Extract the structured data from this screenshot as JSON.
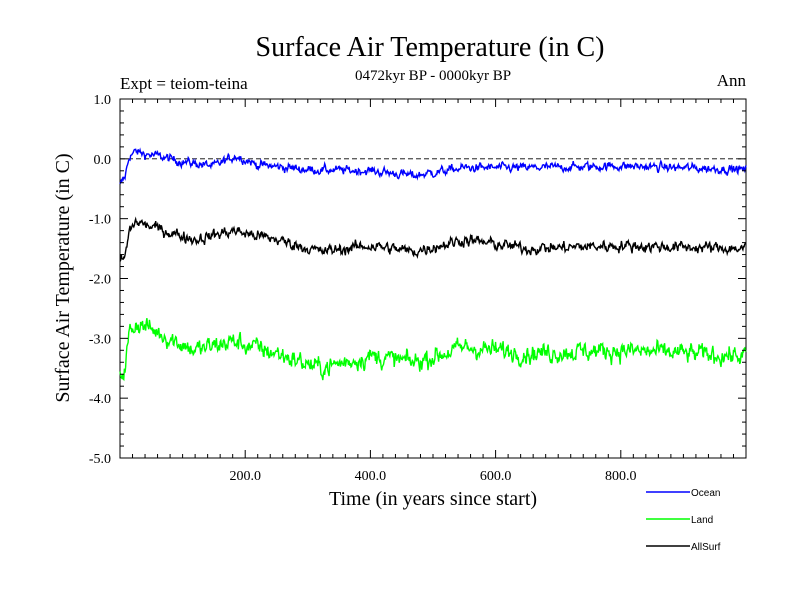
{
  "chart_data": {
    "type": "line",
    "title": "Surface Air Temperature (in C)",
    "subtitle": "0472kyr BP - 0000kyr BP",
    "expt_label": "Expt = teiom-teina",
    "season_label": "Ann",
    "xlabel": "Time (in years since start)",
    "ylabel": "Surface Air Temperature (in C)",
    "xlim": [
      0,
      1000
    ],
    "ylim": [
      -5.0,
      1.0
    ],
    "x_ticks": [
      200,
      400,
      600,
      800
    ],
    "x_tick_labels": [
      "200.0",
      "400.0",
      "600.0",
      "800.0"
    ],
    "y_ticks": [
      1.0,
      0.0,
      -1.0,
      -2.0,
      -3.0,
      -4.0,
      -5.0
    ],
    "y_tick_labels": [
      "1.0",
      "0.0",
      "-1.0",
      "-2.0",
      "-3.0",
      "-4.0",
      "-5.0"
    ],
    "reference_line": 0.0,
    "legend_position": "bottom-right",
    "series": [
      {
        "name": "Ocean",
        "color": "#0000ff",
        "segments": [
          {
            "x": 0,
            "y": -0.45
          },
          {
            "x": 8,
            "y": -0.3
          },
          {
            "x": 15,
            "y": 0.05
          },
          {
            "x": 25,
            "y": 0.12
          },
          {
            "x": 40,
            "y": 0.08
          },
          {
            "x": 60,
            "y": 0.05
          },
          {
            "x": 100,
            "y": -0.05
          },
          {
            "x": 150,
            "y": -0.12
          },
          {
            "x": 185,
            "y": 0.05
          },
          {
            "x": 220,
            "y": -0.1
          },
          {
            "x": 300,
            "y": -0.18
          },
          {
            "x": 400,
            "y": -0.2
          },
          {
            "x": 470,
            "y": -0.28
          },
          {
            "x": 550,
            "y": -0.15
          },
          {
            "x": 650,
            "y": -0.15
          },
          {
            "x": 800,
            "y": -0.12
          },
          {
            "x": 1000,
            "y": -0.18
          }
        ],
        "noise": 0.1
      },
      {
        "name": "Land",
        "color": "#00ff00",
        "segments": [
          {
            "x": 0,
            "y": -3.6
          },
          {
            "x": 8,
            "y": -3.5
          },
          {
            "x": 15,
            "y": -2.9
          },
          {
            "x": 25,
            "y": -2.75
          },
          {
            "x": 40,
            "y": -2.8
          },
          {
            "x": 70,
            "y": -2.95
          },
          {
            "x": 120,
            "y": -3.2
          },
          {
            "x": 180,
            "y": -3.05
          },
          {
            "x": 250,
            "y": -3.25
          },
          {
            "x": 320,
            "y": -3.5
          },
          {
            "x": 400,
            "y": -3.3
          },
          {
            "x": 470,
            "y": -3.4
          },
          {
            "x": 550,
            "y": -3.15
          },
          {
            "x": 650,
            "y": -3.25
          },
          {
            "x": 800,
            "y": -3.2
          },
          {
            "x": 1000,
            "y": -3.3
          }
        ],
        "noise": 0.22
      },
      {
        "name": "AllSurf",
        "color": "#000000",
        "segments": [
          {
            "x": 0,
            "y": -1.7
          },
          {
            "x": 8,
            "y": -1.65
          },
          {
            "x": 15,
            "y": -1.2
          },
          {
            "x": 25,
            "y": -1.05
          },
          {
            "x": 40,
            "y": -1.1
          },
          {
            "x": 70,
            "y": -1.2
          },
          {
            "x": 120,
            "y": -1.35
          },
          {
            "x": 180,
            "y": -1.2
          },
          {
            "x": 250,
            "y": -1.35
          },
          {
            "x": 320,
            "y": -1.55
          },
          {
            "x": 400,
            "y": -1.45
          },
          {
            "x": 470,
            "y": -1.55
          },
          {
            "x": 550,
            "y": -1.35
          },
          {
            "x": 650,
            "y": -1.5
          },
          {
            "x": 800,
            "y": -1.45
          },
          {
            "x": 1000,
            "y": -1.5
          }
        ],
        "noise": 0.13
      }
    ]
  }
}
